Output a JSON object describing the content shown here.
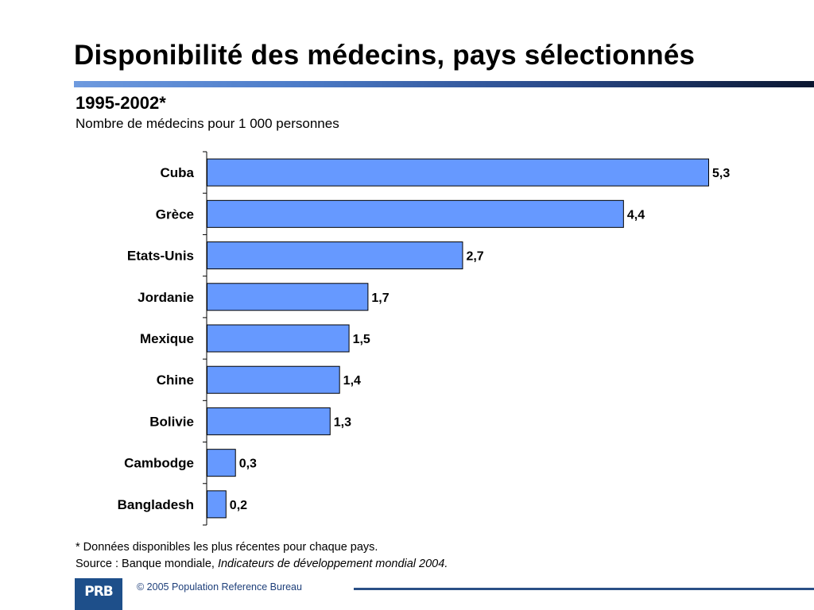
{
  "slide": {
    "title": "Disponibilité des médecins, pays sélectionnés",
    "subtitle": "1995-2002*",
    "units": "Nombre de médecins pour 1 000 personnes",
    "footnote": "* Données disponibles les plus récentes pour chaque pays.",
    "source_prefix": "Source : Banque mondiale, ",
    "source_title": "Indicateurs de développement mondial 2004.",
    "logo_text": "PRB",
    "copyright": "© 2005 Population Reference Bureau"
  },
  "colors": {
    "bar_fill": "#6699ff",
    "bar_stroke": "#000000",
    "logo": "#1e4f8a",
    "accent": "#2a4f86"
  },
  "chart_data": {
    "type": "bar",
    "orientation": "horizontal",
    "title": "Disponibilité des médecins, pays sélectionnés",
    "subtitle": "1995-2002*",
    "xlabel": "Nombre de médecins pour 1 000 personnes",
    "ylabel": "",
    "categories": [
      "Cuba",
      "Grèce",
      "Etats-Unis",
      "Jordanie",
      "Mexique",
      "Chine",
      "Bolivie",
      "Cambodge",
      "Bangladesh"
    ],
    "values": [
      5.3,
      4.4,
      2.7,
      1.7,
      1.5,
      1.4,
      1.3,
      0.3,
      0.2
    ],
    "data_labels": [
      "5,3",
      "4,4",
      "2,7",
      "1,7",
      "1,5",
      "1,4",
      "1,3",
      "0,3",
      "0,2"
    ],
    "xlim": [
      0,
      5.3
    ],
    "grid": false,
    "legend": "none"
  }
}
